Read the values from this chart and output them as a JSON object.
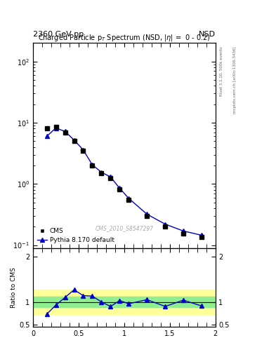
{
  "title_top_left": "2360 GeV pp",
  "title_top_right": "NSD",
  "main_title": "Charged Particle p$_T$ Spectrum (NSD, |$\\eta$| =  0 - 0.2)",
  "watermark": "CMS_2010_S8547297",
  "right_label_top": "Rivet 3.1.10, 500k events",
  "right_label_bottom": "mcplots.cern.ch [arXiv:1306.3436]",
  "cms_pt": [
    0.15,
    0.25,
    0.35,
    0.45,
    0.55,
    0.65,
    0.75,
    0.85,
    0.95,
    1.05,
    1.25,
    1.45,
    1.65,
    1.85
  ],
  "cms_y": [
    8.0,
    8.5,
    7.0,
    5.0,
    3.5,
    2.0,
    1.5,
    1.25,
    0.82,
    0.55,
    0.3,
    0.2,
    0.155,
    0.135
  ],
  "py_pt": [
    0.15,
    0.25,
    0.35,
    0.45,
    0.55,
    0.65,
    0.75,
    0.85,
    0.95,
    1.05,
    1.25,
    1.45,
    1.65,
    1.85
  ],
  "py_y": [
    6.0,
    8.2,
    7.2,
    5.2,
    3.6,
    2.05,
    1.55,
    1.3,
    0.85,
    0.58,
    0.32,
    0.22,
    0.17,
    0.145
  ],
  "ratio_pt": [
    0.15,
    0.25,
    0.35,
    0.45,
    0.55,
    0.65,
    0.75,
    0.85,
    0.95,
    1.05,
    1.25,
    1.45,
    1.65,
    1.85
  ],
  "ratio_y": [
    0.73,
    0.93,
    1.1,
    1.27,
    1.14,
    1.13,
    1.0,
    0.9,
    1.03,
    0.96,
    1.05,
    0.9,
    1.04,
    0.91
  ],
  "green_band_low": 0.88,
  "green_band_high": 1.12,
  "yellow_band_low": 0.72,
  "yellow_band_high": 1.28,
  "xlim": [
    0.0,
    2.0
  ],
  "ylim_main": [
    0.09,
    200
  ],
  "ylim_ratio": [
    0.45,
    2.2
  ],
  "cms_color": "#000000",
  "py_color": "#0000cc",
  "cms_marker": "s",
  "py_marker": "^",
  "green_color": "#90ee90",
  "yellow_color": "#ffff99"
}
